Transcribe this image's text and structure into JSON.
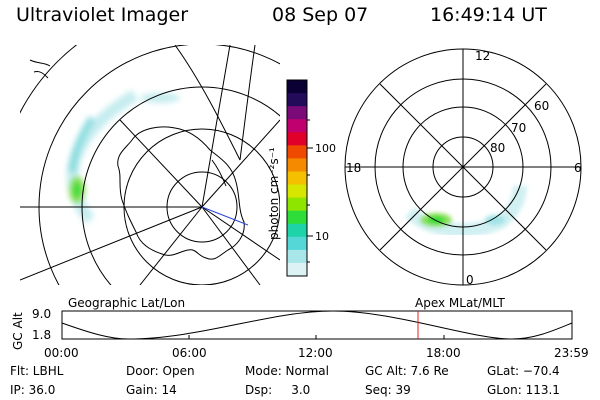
{
  "header": {
    "title": "Ultraviolet Imager",
    "date": "08 Sep 07",
    "time": "16:49:14 UT"
  },
  "colorbar": {
    "unit_label": "photon cm⁻²s⁻¹",
    "ticks": [
      "100",
      "10"
    ],
    "colors": [
      "#0b0033",
      "#230b5a",
      "#7a0a78",
      "#c0006e",
      "#e0002a",
      "#f04a00",
      "#f58a00",
      "#f5c000",
      "#d6e600",
      "#8ee600",
      "#2edc3a",
      "#1fd3a8",
      "#55d7d7",
      "#a8e6ea",
      "#dcf2f4"
    ]
  },
  "left_map": {
    "label": "Geographic Lat/Lon"
  },
  "right_map": {
    "label": "Apex MLat/MLT",
    "mlt_labels": {
      "top": "12",
      "left": "18",
      "right": "6",
      "bottom": "0"
    },
    "lat_labels": [
      "60",
      "70",
      "80"
    ]
  },
  "altitude_plot": {
    "ylabel": "GC Alt",
    "yticks": [
      "9.0",
      "1.8"
    ],
    "xticks": [
      "00:00",
      "06:00",
      "12:00",
      "18:00",
      "23:59"
    ]
  },
  "info": {
    "row1": {
      "flt": "Flt: LBHL",
      "door": "Door: Open",
      "mode": "Mode: Normal",
      "gcalt": "GC Alt: 7.6 Re",
      "glat": "GLat: −70.4"
    },
    "row2": {
      "ip": "IP: 36.0",
      "gain": "Gain: 14",
      "dsp": "Dsp:     3.0",
      "seq": "Seq: 39",
      "glon": "GLon: 113.1"
    }
  }
}
